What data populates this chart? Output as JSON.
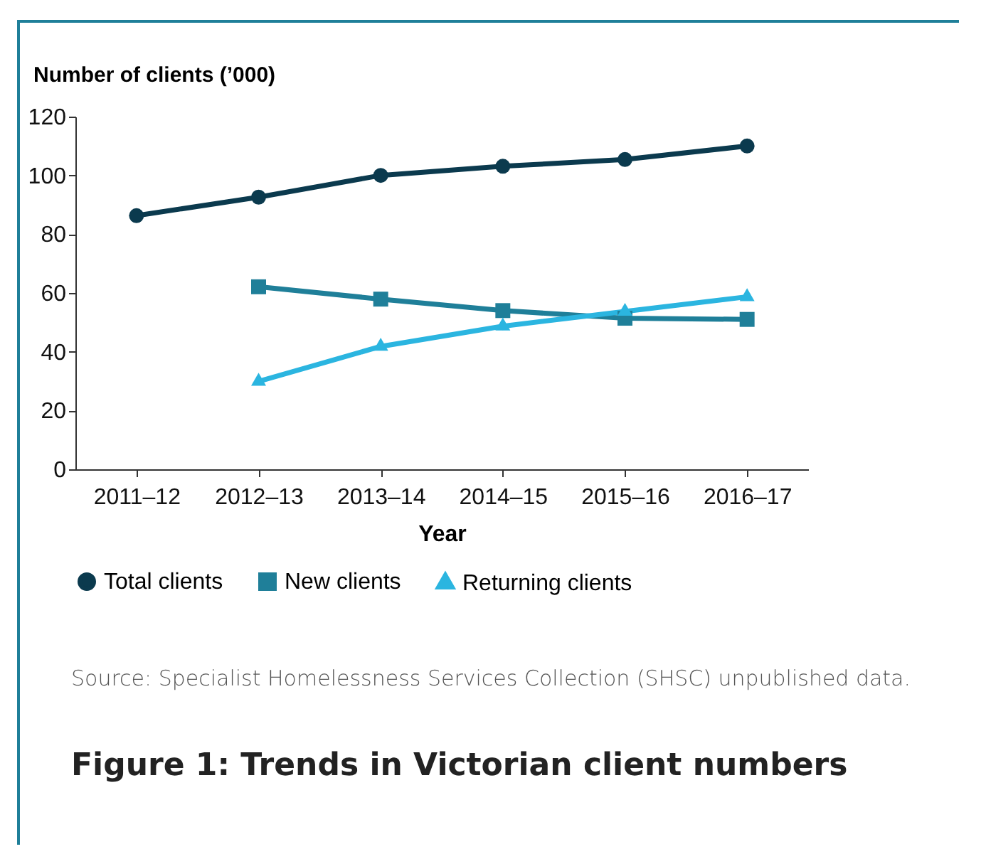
{
  "chart_data": {
    "type": "line",
    "title": "Figure 1: Trends in Victorian client numbers",
    "xlabel": "Year",
    "ylabel": "Number of clients (’000)",
    "categories": [
      "2011–12",
      "2012–13",
      "2013–14",
      "2014–15",
      "2015–16",
      "2016–17"
    ],
    "series": [
      {
        "name": "Total clients",
        "color": "#0b3a4e",
        "marker": "circle",
        "values": [
          86.3,
          92.6,
          100,
          103.1,
          105.4,
          110
        ]
      },
      {
        "name": "New clients",
        "color": "#1f7f99",
        "marker": "square",
        "values": [
          null,
          62.1,
          57.9,
          54,
          51.4,
          51
        ]
      },
      {
        "name": "Returning clients",
        "color": "#2bb5e0",
        "marker": "triangle",
        "values": [
          null,
          29.9,
          41.8,
          48.7,
          53.7,
          58.7
        ]
      }
    ],
    "ylim": [
      0,
      120
    ],
    "yticks": [
      0,
      20,
      40,
      60,
      80,
      100,
      120
    ],
    "grid": false,
    "legend": "bottom",
    "annotations": [
      "Source: Specialist Homelessness Services Collection (SHSC) unpublished data."
    ]
  }
}
